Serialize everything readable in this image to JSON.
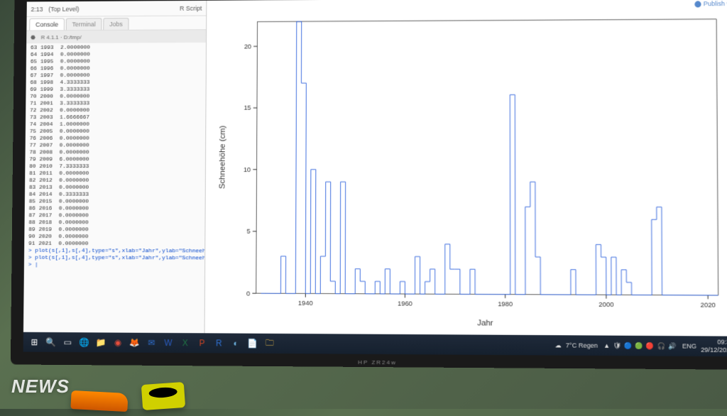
{
  "monitor_label": "HP ZR24w",
  "rstudio": {
    "top_left": "2:13",
    "top_level": "(Top Level)",
    "top_right": "R Script",
    "tabs": [
      "Console",
      "Terminal",
      "Jobs"
    ],
    "console_prefix": "R 4.1.1 · D:/tmp/",
    "publish": "Publish"
  },
  "console_rows": [
    [
      63,
      1993,
      "2.0000000"
    ],
    [
      64,
      1994,
      "0.0000000"
    ],
    [
      65,
      1995,
      "0.0000000"
    ],
    [
      66,
      1996,
      "0.0000000"
    ],
    [
      67,
      1997,
      "0.0000000"
    ],
    [
      68,
      1998,
      "4.3333333"
    ],
    [
      69,
      1999,
      "3.3333333"
    ],
    [
      70,
      2000,
      "0.0000000"
    ],
    [
      71,
      2001,
      "3.3333333"
    ],
    [
      72,
      2002,
      "0.0000000"
    ],
    [
      73,
      2003,
      "1.6666667"
    ],
    [
      74,
      2004,
      "1.0000000"
    ],
    [
      75,
      2005,
      "0.0000000"
    ],
    [
      76,
      2006,
      "0.0000000"
    ],
    [
      77,
      2007,
      "0.0000000"
    ],
    [
      78,
      2008,
      "0.0000000"
    ],
    [
      79,
      2009,
      "6.0000000"
    ],
    [
      80,
      2010,
      "7.3333333"
    ],
    [
      81,
      2011,
      "0.0000000"
    ],
    [
      82,
      2012,
      "0.0000000"
    ],
    [
      83,
      2013,
      "0.0000000"
    ],
    [
      84,
      2014,
      "0.3333333"
    ],
    [
      85,
      2015,
      "0.0000000"
    ],
    [
      86,
      2016,
      "0.0000000"
    ],
    [
      87,
      2017,
      "0.0000000"
    ],
    [
      88,
      2018,
      "0.0000000"
    ],
    [
      89,
      2019,
      "0.0000000"
    ],
    [
      90,
      2020,
      "0.0000000"
    ],
    [
      91,
      2021,
      "0.0000000"
    ]
  ],
  "console_cmds": [
    "> plot(s[,1],s[,4],type=\"s\",xlab=\"Jahr\",ylab=\"Schneehöhe (cm)\",col=\"blue\")",
    "> plot(s[,1],s[,4],type=\"s\",xlab=\"Jahr\",ylab=\"Schneehöhe (cm)\",col=\"blue\")",
    "> |"
  ],
  "chart": {
    "type": "step",
    "xlabel": "Jahr",
    "ylabel": "Schneehöhe (cm)",
    "color": "#3366dd",
    "background": "#ffffff",
    "axis_color": "#000000",
    "label_fontsize": 11,
    "tick_fontsize": 9,
    "xlim": [
      1930,
      2022
    ],
    "ylim": [
      0,
      22
    ],
    "xticks": [
      1940,
      1960,
      1980,
      2000,
      2020
    ],
    "yticks": [
      0,
      5,
      10,
      15,
      20
    ],
    "data": [
      [
        1931,
        0
      ],
      [
        1932,
        0
      ],
      [
        1933,
        0
      ],
      [
        1934,
        0
      ],
      [
        1935,
        3
      ],
      [
        1936,
        0
      ],
      [
        1937,
        0
      ],
      [
        1938,
        22
      ],
      [
        1939,
        17
      ],
      [
        1940,
        0
      ],
      [
        1941,
        10
      ],
      [
        1942,
        0
      ],
      [
        1943,
        3
      ],
      [
        1944,
        9
      ],
      [
        1945,
        1
      ],
      [
        1946,
        0
      ],
      [
        1947,
        9
      ],
      [
        1948,
        0
      ],
      [
        1949,
        0
      ],
      [
        1950,
        2
      ],
      [
        1951,
        1
      ],
      [
        1952,
        0
      ],
      [
        1953,
        0
      ],
      [
        1954,
        1
      ],
      [
        1955,
        0
      ],
      [
        1956,
        2
      ],
      [
        1957,
        0
      ],
      [
        1958,
        0
      ],
      [
        1959,
        1
      ],
      [
        1960,
        0
      ],
      [
        1961,
        0
      ],
      [
        1962,
        3
      ],
      [
        1963,
        0
      ],
      [
        1964,
        1
      ],
      [
        1965,
        2
      ],
      [
        1966,
        0
      ],
      [
        1967,
        0
      ],
      [
        1968,
        4
      ],
      [
        1969,
        2
      ],
      [
        1970,
        2
      ],
      [
        1971,
        0
      ],
      [
        1972,
        0
      ],
      [
        1973,
        2
      ],
      [
        1974,
        0
      ],
      [
        1975,
        0
      ],
      [
        1976,
        0
      ],
      [
        1977,
        0
      ],
      [
        1978,
        0
      ],
      [
        1979,
        0
      ],
      [
        1980,
        0
      ],
      [
        1981,
        16
      ],
      [
        1982,
        0
      ],
      [
        1983,
        0
      ],
      [
        1984,
        7
      ],
      [
        1985,
        9
      ],
      [
        1986,
        3
      ],
      [
        1987,
        0
      ],
      [
        1988,
        0
      ],
      [
        1989,
        0
      ],
      [
        1990,
        0
      ],
      [
        1991,
        0
      ],
      [
        1992,
        0
      ],
      [
        1993,
        2
      ],
      [
        1994,
        0
      ],
      [
        1995,
        0
      ],
      [
        1996,
        0
      ],
      [
        1997,
        0
      ],
      [
        1998,
        4
      ],
      [
        1999,
        3
      ],
      [
        2000,
        0
      ],
      [
        2001,
        3
      ],
      [
        2002,
        0
      ],
      [
        2003,
        2
      ],
      [
        2004,
        1
      ],
      [
        2005,
        0
      ],
      [
        2006,
        0
      ],
      [
        2007,
        0
      ],
      [
        2008,
        0
      ],
      [
        2009,
        6
      ],
      [
        2010,
        7
      ],
      [
        2011,
        0
      ],
      [
        2012,
        0
      ],
      [
        2013,
        0
      ],
      [
        2014,
        0
      ],
      [
        2015,
        0
      ],
      [
        2016,
        0
      ],
      [
        2017,
        0
      ],
      [
        2018,
        0
      ],
      [
        2019,
        0
      ],
      [
        2020,
        0
      ],
      [
        2021,
        0
      ]
    ]
  },
  "taskbar_icons": [
    {
      "name": "start-icon",
      "glyph": "⊞",
      "color": "#ffffff"
    },
    {
      "name": "search-icon",
      "glyph": "🔍",
      "color": "#ffffff"
    },
    {
      "name": "task-view-icon",
      "glyph": "▭",
      "color": "#ffffff"
    },
    {
      "name": "edge-icon",
      "glyph": "🌐",
      "color": "#43a6e8"
    },
    {
      "name": "explorer-icon",
      "glyph": "📁",
      "color": "#f3c34a"
    },
    {
      "name": "chrome-icon",
      "glyph": "◉",
      "color": "#e84e3c"
    },
    {
      "name": "firefox-icon",
      "glyph": "🦊",
      "color": "#e07c2a"
    },
    {
      "name": "outlook-icon",
      "glyph": "✉",
      "color": "#2f6fd0"
    },
    {
      "name": "word-icon",
      "glyph": "W",
      "color": "#2a5bbf"
    },
    {
      "name": "excel-icon",
      "glyph": "X",
      "color": "#1f7244"
    },
    {
      "name": "ppt-icon",
      "glyph": "P",
      "color": "#c84324"
    },
    {
      "name": "r-icon",
      "glyph": "R",
      "color": "#2f6fd0"
    },
    {
      "name": "rstudio-icon",
      "glyph": "◐",
      "color": "#6fb3e0"
    },
    {
      "name": "notepad-icon",
      "glyph": "📄",
      "color": "#f3e9a0"
    },
    {
      "name": "folder-icon",
      "glyph": "🗀",
      "color": "#f3c34a"
    }
  ],
  "tray": {
    "weather_icon": "☁",
    "weather_text": "7°C Regen",
    "lang": "ENG",
    "time": "09:37",
    "date": "29/12/2021",
    "icons": [
      "▲",
      "🛡",
      "🔵",
      "🟢",
      "🔴",
      "🎧",
      "🔊"
    ]
  },
  "news_label": "NEWS"
}
